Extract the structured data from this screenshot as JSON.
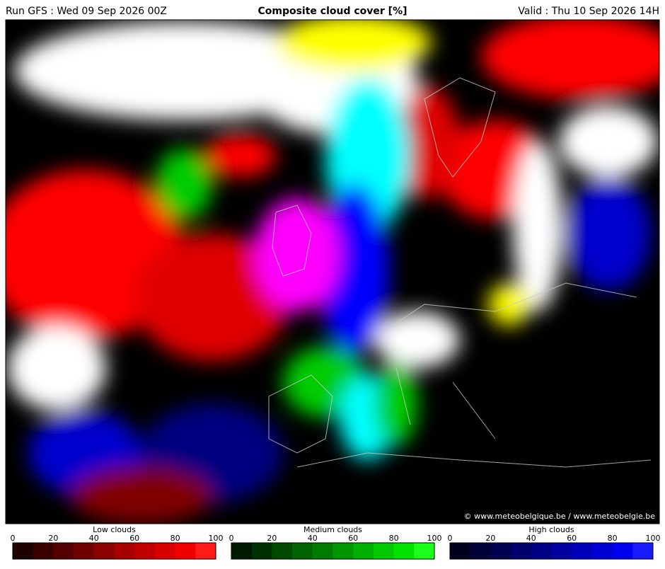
{
  "header": {
    "run": "Run GFS : Wed 09 Sep 2026 00Z",
    "title": "Composite cloud cover [%]",
    "valid": "Valid : Thu 10 Sep 2026 14H"
  },
  "credit": "© www.meteobelgique.be / www.meteobelgie.be",
  "legends": [
    {
      "title": "Low clouds",
      "ticks": [
        0,
        20,
        40,
        60,
        80,
        100
      ],
      "colors": [
        "#1e0000",
        "#3a0000",
        "#550000",
        "#700000",
        "#8b0000",
        "#a60000",
        "#c00000",
        "#d90000",
        "#f00000",
        "#ff1a1a"
      ]
    },
    {
      "title": "Medium clouds",
      "ticks": [
        0,
        20,
        40,
        60,
        80,
        100
      ],
      "colors": [
        "#001a00",
        "#003000",
        "#004a00",
        "#006400",
        "#007d00",
        "#009600",
        "#00b000",
        "#00c900",
        "#00e300",
        "#1aff1a"
      ]
    },
    {
      "title": "High clouds",
      "ticks": [
        0,
        20,
        40,
        60,
        80,
        100
      ],
      "colors": [
        "#00001e",
        "#000038",
        "#000052",
        "#00006c",
        "#000086",
        "#0000a0",
        "#0000ba",
        "#0000d4",
        "#0000ee",
        "#1a1aff"
      ]
    }
  ]
}
